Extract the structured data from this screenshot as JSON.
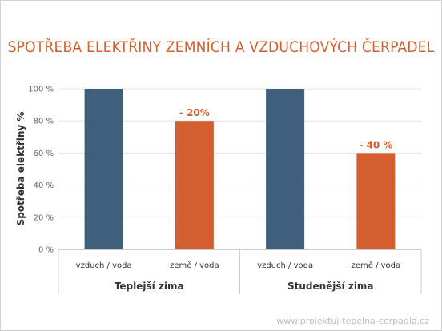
{
  "title": "SPOTŘEBA ELEKTŘINY ZEMNÍCH A VZDUCHOVÝCH ČERPADEL",
  "footer": "www.projektuj-tepelna-cerpadla.cz",
  "colors": {
    "blue": "#3f5f7a",
    "orange": "#d35f2e",
    "title": "#d35f2e"
  },
  "chart_data": {
    "type": "bar",
    "ylabel": "Spotřeba elektřiny %",
    "ylim": [
      0,
      100
    ],
    "yticks": [
      "0 %",
      "20 %",
      "40 %",
      "60 %",
      "80 %",
      "100 %"
    ],
    "grid": true,
    "groups": [
      {
        "name": "Teplejší zima",
        "bars": [
          {
            "category": "vzduch / voda",
            "value": 100,
            "color": "#3f5f7a",
            "label": ""
          },
          {
            "category": "země / voda",
            "value": 80,
            "color": "#d35f2e",
            "label": "- 20%"
          }
        ]
      },
      {
        "name": "Studenější zima",
        "bars": [
          {
            "category": "vzduch / voda",
            "value": 100,
            "color": "#3f5f7a",
            "label": ""
          },
          {
            "category": "země / voda",
            "value": 60,
            "color": "#d35f2e",
            "label": "- 40 %"
          }
        ]
      }
    ]
  }
}
